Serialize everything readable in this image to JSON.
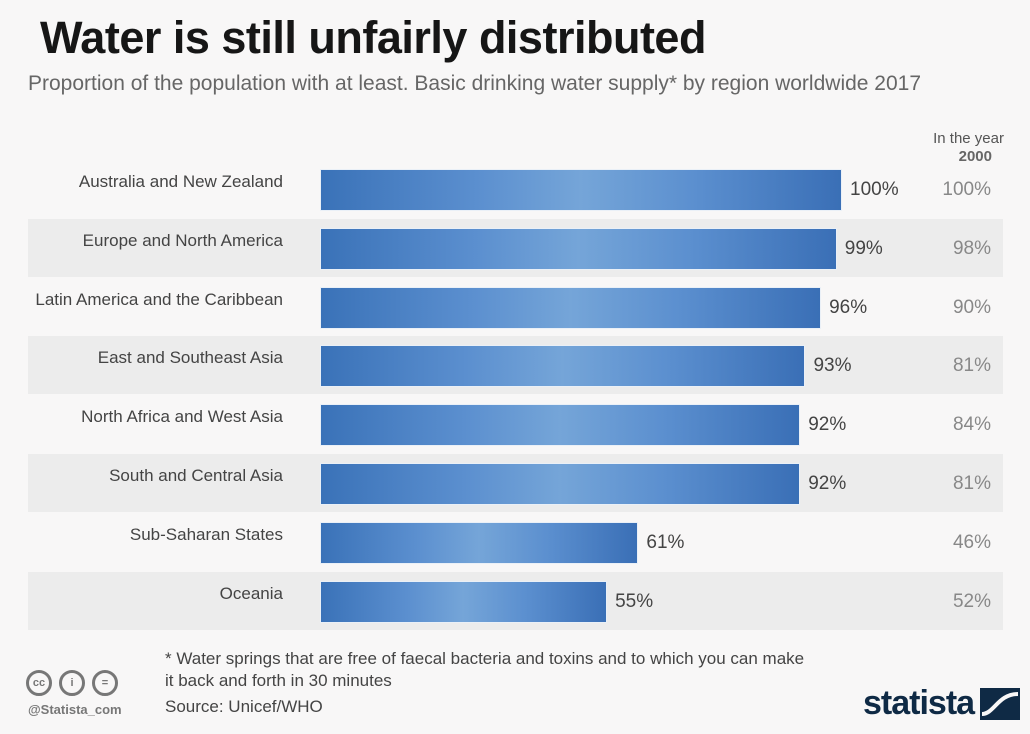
{
  "header": {
    "title": "Water is still unfairly distributed",
    "subtitle": "Proportion of the population with at least. Basic drinking water supply* by region worldwide 2017"
  },
  "column_header": {
    "line1": "In the year",
    "line2": "2000"
  },
  "chart_data": {
    "type": "bar",
    "orientation": "horizontal",
    "title": "Water is still unfairly distributed",
    "subtitle": "Proportion of the population with at least. Basic drinking water supply* by region worldwide 2017",
    "xlabel": "",
    "ylabel": "",
    "xlim": [
      0,
      100
    ],
    "unit": "%",
    "grid": false,
    "categories": [
      "Australia and New Zealand",
      "Europe and North America",
      "Latin America and the Caribbean",
      "East and Southeast Asia",
      "North Africa and West Asia",
      "South and Central Asia",
      "Sub-Saharan States",
      "Oceania"
    ],
    "series": [
      {
        "name": "2017",
        "values": [
          100,
          99,
          96,
          93,
          92,
          92,
          61,
          55
        ],
        "labels": [
          "100%",
          "99%",
          "96%",
          "93%",
          "92%",
          "92%",
          "61%",
          "55%"
        ]
      },
      {
        "name": "In the year 2000",
        "values": [
          100,
          98,
          90,
          81,
          84,
          81,
          46,
          52
        ],
        "labels": [
          "100%",
          "98%",
          "90%",
          "81%",
          "84%",
          "81%",
          "46%",
          "52%"
        ]
      }
    ],
    "bar_color": "#5b8fcf"
  },
  "footer": {
    "footnote": "* Water springs that are free of faecal bacteria and toxins and to which you can make it back and forth in 30 minutes",
    "source": "Source: Unicef/WHO",
    "handle": "@Statista_com",
    "cc_icons": [
      "cc-icon",
      "attribution-icon",
      "no-derivatives-icon"
    ],
    "cc_glyphs": [
      "cc",
      "i",
      "="
    ],
    "logo_text": "statista"
  }
}
